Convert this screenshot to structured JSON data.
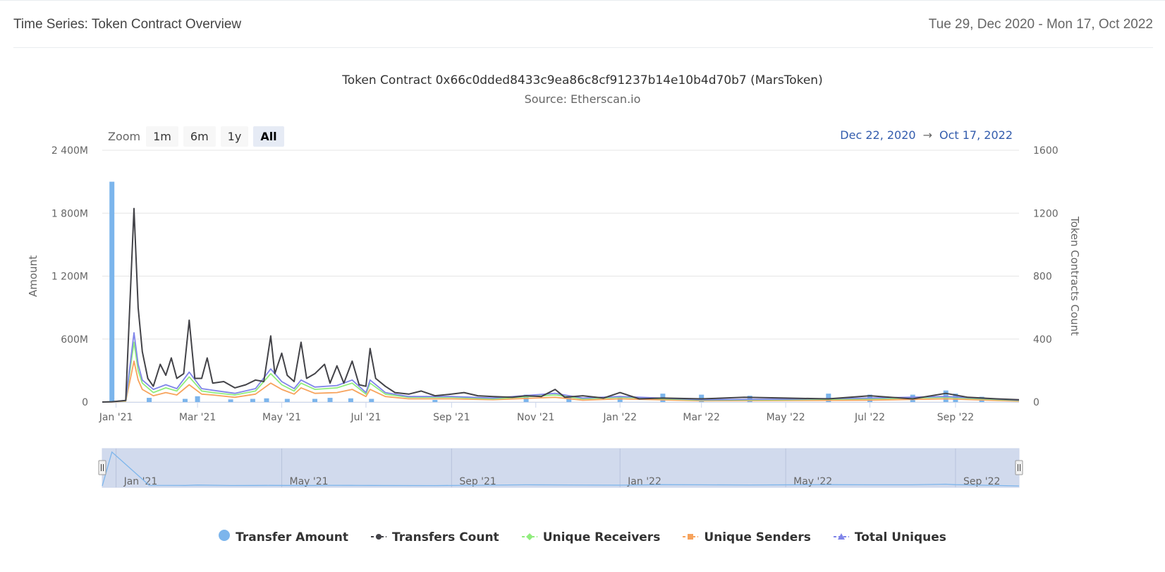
{
  "header": {
    "title": "Time Series: Token Contract Overview",
    "range": "Tue 29, Dec 2020 - Mon 17, Oct 2022"
  },
  "zoom": {
    "label": "Zoom",
    "buttons": [
      "1m",
      "6m",
      "1y",
      "All"
    ],
    "active": "All"
  },
  "range_selector": {
    "from": "Dec 22, 2020",
    "arrow": "→",
    "to": "Oct 17, 2022"
  },
  "colors": {
    "transfer_amount": "#7cb5ec",
    "transfers_count": "#434348",
    "unique_receivers": "#90ed7d",
    "unique_senders": "#f7a35c",
    "total_uniques": "#8085e9"
  },
  "chart_data": {
    "type": "line",
    "title": "Token Contract 0x66c0dded8433c9ea86c8cf91237b14e10b4d70b7 (MarsToken)",
    "subtitle": "Source: Etherscan.io",
    "x_ticks": [
      "Jan '21",
      "Mar '21",
      "May '21",
      "Jul '21",
      "Sep '21",
      "Nov '21",
      "Jan '22",
      "Mar '22",
      "May '22",
      "Jul '22",
      "Sep '22"
    ],
    "navigator_ticks": [
      "Jan '21",
      "May '21",
      "Sep '21",
      "Jan '22",
      "May '22",
      "Sep '22"
    ],
    "y_left": {
      "label": "Amount",
      "ticks": [
        "0",
        "600M",
        "1 200M",
        "1 800M",
        "2 400M"
      ],
      "range": [
        0,
        2400
      ]
    },
    "y_right": {
      "label": "Token Contracts Count",
      "ticks": [
        "0",
        "400",
        "800",
        "1200",
        "1600"
      ],
      "range": [
        0,
        1600
      ]
    },
    "x_range": [
      "2020-12-22",
      "2022-10-17"
    ],
    "legend": [
      "Transfer Amount",
      "Transfers Count",
      "Unique Receivers",
      "Unique Senders",
      "Total Uniques"
    ],
    "legend_position": "bottom",
    "grid": true,
    "transfer_amount_bars": [
      {
        "date": "2020-12-29",
        "value": 2100
      },
      {
        "date": "2021-01-25",
        "value": 40
      },
      {
        "date": "2021-02-20",
        "value": 30
      },
      {
        "date": "2021-03-01",
        "value": 55
      },
      {
        "date": "2021-03-25",
        "value": 25
      },
      {
        "date": "2021-04-10",
        "value": 30
      },
      {
        "date": "2021-04-20",
        "value": 35
      },
      {
        "date": "2021-05-05",
        "value": 30
      },
      {
        "date": "2021-05-25",
        "value": 30
      },
      {
        "date": "2021-06-05",
        "value": 40
      },
      {
        "date": "2021-06-20",
        "value": 35
      },
      {
        "date": "2021-07-05",
        "value": 30
      },
      {
        "date": "2021-08-20",
        "value": 20
      },
      {
        "date": "2021-10-25",
        "value": 70
      },
      {
        "date": "2021-11-25",
        "value": 60
      },
      {
        "date": "2022-01-01",
        "value": 50
      },
      {
        "date": "2022-02-01",
        "value": 80
      },
      {
        "date": "2022-03-01",
        "value": 70
      },
      {
        "date": "2022-04-05",
        "value": 60
      },
      {
        "date": "2022-06-01",
        "value": 80
      },
      {
        "date": "2022-07-01",
        "value": 70
      },
      {
        "date": "2022-08-01",
        "value": 70
      },
      {
        "date": "2022-08-25",
        "value": 110
      },
      {
        "date": "2022-09-01",
        "value": 80
      },
      {
        "date": "2022-09-20",
        "value": 50
      }
    ],
    "series": [
      {
        "name": "Transfers Count",
        "points": [
          [
            "2020-12-22",
            0
          ],
          [
            "2020-12-29",
            2
          ],
          [
            "2021-01-08",
            10
          ],
          [
            "2021-01-14",
            1230
          ],
          [
            "2021-01-17",
            600
          ],
          [
            "2021-01-20",
            320
          ],
          [
            "2021-01-24",
            150
          ],
          [
            "2021-01-28",
            100
          ],
          [
            "2021-02-02",
            240
          ],
          [
            "2021-02-06",
            170
          ],
          [
            "2021-02-10",
            280
          ],
          [
            "2021-02-14",
            150
          ],
          [
            "2021-02-19",
            180
          ],
          [
            "2021-02-23",
            520
          ],
          [
            "2021-02-27",
            150
          ],
          [
            "2021-03-04",
            150
          ],
          [
            "2021-03-08",
            280
          ],
          [
            "2021-03-12",
            120
          ],
          [
            "2021-03-20",
            130
          ],
          [
            "2021-03-28",
            90
          ],
          [
            "2021-04-05",
            110
          ],
          [
            "2021-04-12",
            140
          ],
          [
            "2021-04-18",
            130
          ],
          [
            "2021-04-23",
            420
          ],
          [
            "2021-04-26",
            180
          ],
          [
            "2021-05-01",
            310
          ],
          [
            "2021-05-05",
            170
          ],
          [
            "2021-05-10",
            130
          ],
          [
            "2021-05-15",
            380
          ],
          [
            "2021-05-19",
            150
          ],
          [
            "2021-05-25",
            180
          ],
          [
            "2021-06-01",
            240
          ],
          [
            "2021-06-05",
            120
          ],
          [
            "2021-06-10",
            230
          ],
          [
            "2021-06-15",
            120
          ],
          [
            "2021-06-21",
            260
          ],
          [
            "2021-06-26",
            110
          ],
          [
            "2021-07-01",
            100
          ],
          [
            "2021-07-04",
            340
          ],
          [
            "2021-07-08",
            150
          ],
          [
            "2021-07-15",
            100
          ],
          [
            "2021-07-22",
            60
          ],
          [
            "2021-08-01",
            50
          ],
          [
            "2021-08-10",
            70
          ],
          [
            "2021-08-20",
            40
          ],
          [
            "2021-09-01",
            50
          ],
          [
            "2021-09-10",
            60
          ],
          [
            "2021-09-20",
            40
          ],
          [
            "2021-10-01",
            35
          ],
          [
            "2021-10-15",
            30
          ],
          [
            "2021-10-25",
            40
          ],
          [
            "2021-11-05",
            35
          ],
          [
            "2021-11-15",
            80
          ],
          [
            "2021-11-22",
            30
          ],
          [
            "2021-12-05",
            40
          ],
          [
            "2021-12-20",
            25
          ],
          [
            "2022-01-01",
            60
          ],
          [
            "2022-01-15",
            20
          ],
          [
            "2022-02-01",
            25
          ],
          [
            "2022-03-01",
            20
          ],
          [
            "2022-04-01",
            30
          ],
          [
            "2022-05-01",
            25
          ],
          [
            "2022-06-01",
            20
          ],
          [
            "2022-07-01",
            40
          ],
          [
            "2022-08-01",
            20
          ],
          [
            "2022-08-25",
            55
          ],
          [
            "2022-09-10",
            30
          ],
          [
            "2022-10-01",
            20
          ],
          [
            "2022-10-17",
            15
          ]
        ]
      },
      {
        "name": "Unique Receivers",
        "points": [
          [
            "2020-12-22",
            0
          ],
          [
            "2020-12-29",
            2
          ],
          [
            "2021-01-08",
            8
          ],
          [
            "2021-01-14",
            380
          ],
          [
            "2021-01-17",
            200
          ],
          [
            "2021-01-20",
            120
          ],
          [
            "2021-01-28",
            60
          ],
          [
            "2021-02-06",
            90
          ],
          [
            "2021-02-14",
            70
          ],
          [
            "2021-02-23",
            160
          ],
          [
            "2021-03-04",
            70
          ],
          [
            "2021-03-12",
            60
          ],
          [
            "2021-03-28",
            45
          ],
          [
            "2021-04-12",
            70
          ],
          [
            "2021-04-23",
            180
          ],
          [
            "2021-05-01",
            110
          ],
          [
            "2021-05-10",
            70
          ],
          [
            "2021-05-15",
            120
          ],
          [
            "2021-05-25",
            80
          ],
          [
            "2021-06-10",
            90
          ],
          [
            "2021-06-21",
            120
          ],
          [
            "2021-07-01",
            50
          ],
          [
            "2021-07-04",
            120
          ],
          [
            "2021-07-15",
            50
          ],
          [
            "2021-08-01",
            30
          ],
          [
            "2021-09-01",
            30
          ],
          [
            "2021-10-01",
            20
          ],
          [
            "2021-11-15",
            45
          ],
          [
            "2021-12-05",
            20
          ],
          [
            "2022-01-01",
            30
          ],
          [
            "2022-03-01",
            12
          ],
          [
            "2022-05-01",
            15
          ],
          [
            "2022-07-01",
            20
          ],
          [
            "2022-08-25",
            30
          ],
          [
            "2022-10-17",
            10
          ]
        ]
      },
      {
        "name": "Unique Senders",
        "points": [
          [
            "2020-12-22",
            0
          ],
          [
            "2020-12-29",
            1
          ],
          [
            "2021-01-08",
            6
          ],
          [
            "2021-01-14",
            260
          ],
          [
            "2021-01-17",
            140
          ],
          [
            "2021-01-20",
            80
          ],
          [
            "2021-01-28",
            40
          ],
          [
            "2021-02-06",
            60
          ],
          [
            "2021-02-14",
            45
          ],
          [
            "2021-02-23",
            110
          ],
          [
            "2021-03-04",
            50
          ],
          [
            "2021-03-12",
            45
          ],
          [
            "2021-03-28",
            30
          ],
          [
            "2021-04-12",
            50
          ],
          [
            "2021-04-23",
            120
          ],
          [
            "2021-05-01",
            80
          ],
          [
            "2021-05-10",
            50
          ],
          [
            "2021-05-15",
            90
          ],
          [
            "2021-05-25",
            55
          ],
          [
            "2021-06-10",
            60
          ],
          [
            "2021-06-21",
            80
          ],
          [
            "2021-07-01",
            35
          ],
          [
            "2021-07-04",
            80
          ],
          [
            "2021-07-15",
            35
          ],
          [
            "2021-08-01",
            20
          ],
          [
            "2021-09-01",
            20
          ],
          [
            "2021-10-01",
            15
          ],
          [
            "2021-11-15",
            30
          ],
          [
            "2021-12-05",
            12
          ],
          [
            "2022-01-01",
            20
          ],
          [
            "2022-03-01",
            8
          ],
          [
            "2022-05-01",
            10
          ],
          [
            "2022-07-01",
            12
          ],
          [
            "2022-08-25",
            20
          ],
          [
            "2022-10-17",
            6
          ]
        ]
      },
      {
        "name": "Total Uniques",
        "points": [
          [
            "2020-12-22",
            0
          ],
          [
            "2020-12-29",
            2
          ],
          [
            "2021-01-08",
            10
          ],
          [
            "2021-01-14",
            440
          ],
          [
            "2021-01-17",
            240
          ],
          [
            "2021-01-20",
            140
          ],
          [
            "2021-01-28",
            80
          ],
          [
            "2021-02-06",
            110
          ],
          [
            "2021-02-14",
            85
          ],
          [
            "2021-02-23",
            190
          ],
          [
            "2021-03-04",
            85
          ],
          [
            "2021-03-12",
            75
          ],
          [
            "2021-03-28",
            55
          ],
          [
            "2021-04-12",
            85
          ],
          [
            "2021-04-23",
            210
          ],
          [
            "2021-05-01",
            130
          ],
          [
            "2021-05-10",
            85
          ],
          [
            "2021-05-15",
            140
          ],
          [
            "2021-05-25",
            95
          ],
          [
            "2021-06-10",
            105
          ],
          [
            "2021-06-21",
            140
          ],
          [
            "2021-07-01",
            60
          ],
          [
            "2021-07-04",
            140
          ],
          [
            "2021-07-15",
            60
          ],
          [
            "2021-08-01",
            35
          ],
          [
            "2021-09-01",
            35
          ],
          [
            "2021-10-01",
            25
          ],
          [
            "2021-11-15",
            55
          ],
          [
            "2021-12-05",
            25
          ],
          [
            "2022-01-01",
            35
          ],
          [
            "2022-03-01",
            15
          ],
          [
            "2022-05-01",
            18
          ],
          [
            "2022-07-01",
            25
          ],
          [
            "2022-08-25",
            35
          ],
          [
            "2022-10-17",
            12
          ]
        ]
      }
    ]
  }
}
